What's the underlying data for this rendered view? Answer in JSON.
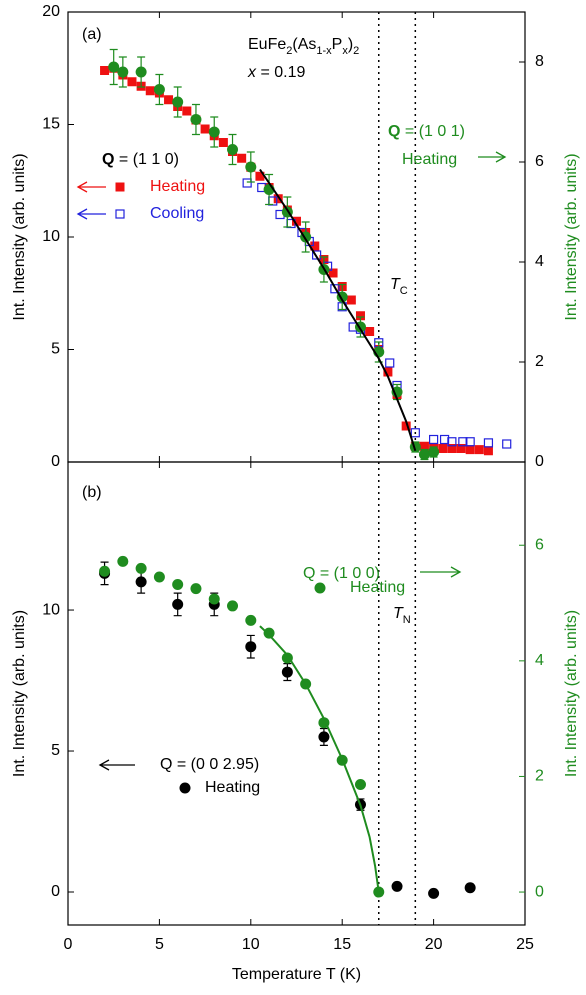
{
  "chart_data": [
    {
      "type": "scatter",
      "xlim": [
        0,
        25
      ],
      "xticks": [
        0,
        5,
        10,
        15,
        20,
        25
      ],
      "ylim": [
        0,
        20
      ],
      "yticks": [
        0,
        5,
        10,
        15,
        20
      ],
      "y2lim": [
        0,
        9
      ],
      "y2ticks": [
        0,
        2,
        4,
        6,
        8
      ],
      "ylabel": "Int. Intensity (arb. units)",
      "y2label": "Int. Intensity (arb. units)",
      "y2label_color": "#1f8c1f",
      "y2tick_color": "#000000",
      "vlines": [
        17,
        19
      ],
      "annotations": [
        {
          "parts": [
            {
              "text": "(a)"
            }
          ],
          "color": "#000000"
        },
        {
          "parts": [
            {
              "text": "EuFe"
            },
            {
              "text": "2",
              "style": "sub"
            },
            {
              "text": "(As"
            },
            {
              "text": "1-x",
              "style": "sub"
            },
            {
              "text": "P"
            },
            {
              "text": "x",
              "style": "sub"
            },
            {
              "text": ")"
            },
            {
              "text": "2",
              "style": "sub"
            }
          ],
          "color": "#000000"
        },
        {
          "parts": [
            {
              "text": "x",
              "style": "italic"
            },
            {
              "text": " = 0.19"
            }
          ],
          "color": "#000000"
        },
        {
          "parts": [
            {
              "text": "Q",
              "style": "bold"
            },
            {
              "text": " = (1 1 0)"
            }
          ],
          "color": "#000000"
        },
        {
          "parts": [
            {
              "text": "Q",
              "style": "bold"
            },
            {
              "text": " = (1 0 1)"
            }
          ],
          "color": "#1f8c1f"
        },
        {
          "parts": [
            {
              "text": "T",
              "style": "italic"
            },
            {
              "text": "C",
              "style": "sub"
            }
          ],
          "color": "#000000"
        }
      ],
      "series": [
        {
          "name": "Heating",
          "color": "#ee1111",
          "marker": "square",
          "axis": "y",
          "x": [
            2,
            2.5,
            3,
            3.5,
            4,
            4.5,
            5,
            5.5,
            6,
            6.5,
            7,
            7.5,
            8,
            8.5,
            9,
            9.5,
            10,
            10.5,
            11,
            11.5,
            12,
            12.5,
            13,
            13.5,
            14,
            14.5,
            15,
            15.5,
            16,
            16.5,
            17,
            17.5,
            18,
            18.5,
            19,
            19.5,
            20,
            20.5,
            21,
            21.5,
            22,
            22.5,
            23
          ],
          "values": [
            17.4,
            17.5,
            17.2,
            16.9,
            16.7,
            16.5,
            16.4,
            16.1,
            15.8,
            15.6,
            15.2,
            14.8,
            14.5,
            14.2,
            13.8,
            13.5,
            13.1,
            12.7,
            12.2,
            11.7,
            11.2,
            10.7,
            10.2,
            9.6,
            9.0,
            8.4,
            7.8,
            7.2,
            6.5,
            5.8,
            5.0,
            4.0,
            3.0,
            1.6,
            0.7,
            0.7,
            0.65,
            0.6,
            0.6,
            0.6,
            0.55,
            0.55,
            0.5
          ]
        },
        {
          "name": "Cooling",
          "color": "#2222dd",
          "marker": "open-square",
          "axis": "y",
          "x": [
            9.8,
            10.6,
            11.2,
            11.6,
            12.2,
            12.8,
            13.2,
            13.6,
            14.2,
            14.6,
            15,
            15.6,
            16,
            17,
            17.6,
            18,
            19,
            20,
            20.6,
            21,
            21.6,
            22,
            23,
            24
          ],
          "values": [
            12.4,
            12.2,
            11.6,
            11.0,
            10.6,
            10.2,
            9.8,
            9.2,
            8.7,
            7.7,
            6.9,
            6.0,
            5.9,
            5.3,
            4.4,
            3.4,
            1.3,
            1.0,
            1.0,
            0.9,
            0.9,
            0.9,
            0.85,
            0.8
          ]
        },
        {
          "name": "Heating",
          "color": "#1f8c1f",
          "marker": "circle",
          "axis": "y2",
          "x": [
            2.5,
            3,
            4,
            5,
            6,
            7,
            8,
            9,
            10,
            11,
            12,
            13,
            14,
            15,
            16,
            17,
            18,
            19,
            19.5,
            20
          ],
          "values": [
            7.9,
            7.8,
            7.8,
            7.45,
            7.2,
            6.85,
            6.6,
            6.25,
            5.9,
            5.45,
            5.0,
            4.5,
            3.85,
            3.3,
            2.7,
            2.2,
            1.4,
            0.3,
            0.15,
            0.2
          ],
          "errors": [
            0.35,
            0.3,
            0.3,
            0.3,
            0.3,
            0.3,
            0.3,
            0.3,
            0.3,
            0.3,
            0.3,
            0.3,
            0.25,
            0.25,
            0.2,
            0.2,
            0.15,
            0.1,
            0.1,
            0.1
          ]
        },
        {
          "color": "#000000",
          "marker": "line",
          "axis": "y",
          "x": [
            10.5,
            11,
            12,
            13,
            14,
            15,
            16,
            17,
            17.5,
            18,
            18.5,
            19
          ],
          "values": [
            13.0,
            12.4,
            11.2,
            9.9,
            8.6,
            7.2,
            5.9,
            4.6,
            3.8,
            2.8,
            1.8,
            0.5
          ]
        }
      ]
    },
    {
      "type": "scatter",
      "xlim": [
        0,
        25
      ],
      "xticks": [
        0,
        5,
        10,
        15,
        20,
        25
      ],
      "xlabel": "Temperature T (K)",
      "ylim": [
        -1.17,
        15.25
      ],
      "yticks": [
        0,
        5,
        10
      ],
      "y2lim": [
        -0.57,
        7.44
      ],
      "y2ticks": [
        0,
        2,
        4,
        6
      ],
      "ylabel": "Int. Intensity (arb. units)",
      "y2label": "Int. Intensity (arb. units)",
      "y2label_color": "#1f8c1f",
      "y2tick_color": "#1f8c1f",
      "vlines": [
        17,
        19
      ],
      "annotations": [
        {
          "parts": [
            {
              "text": "(b)"
            }
          ],
          "color": "#000000"
        },
        {
          "parts": [
            {
              "text": "Q = (1 0 0)"
            }
          ],
          "color": "#1f8c1f"
        },
        {
          "parts": [
            {
              "text": "T",
              "style": "italic"
            },
            {
              "text": "N",
              "style": "sub"
            }
          ],
          "color": "#000000"
        },
        {
          "parts": [
            {
              "text": "Q = (0 0 2.95)"
            }
          ],
          "color": "#000000"
        }
      ],
      "series": [
        {
          "name": "Heating",
          "color": "#000000",
          "marker": "circle",
          "axis": "y",
          "x": [
            2,
            4,
            6,
            8,
            10,
            12,
            14,
            16,
            18,
            20,
            22
          ],
          "values": [
            11.3,
            11.0,
            10.2,
            10.2,
            8.7,
            7.8,
            5.5,
            3.1,
            0.2,
            -0.05,
            0.15
          ],
          "errors": [
            0.4,
            0.4,
            0.4,
            0.4,
            0.4,
            0.3,
            0.3,
            0.2,
            null,
            null,
            null
          ]
        },
        {
          "name": "Heating",
          "color": "#1f8c1f",
          "marker": "circle",
          "axis": "y2",
          "x": [
            2,
            3,
            4,
            5,
            6,
            7,
            8,
            9,
            10,
            11,
            12,
            13,
            14,
            15,
            16,
            17
          ],
          "values": [
            5.55,
            5.72,
            5.6,
            5.45,
            5.32,
            5.25,
            5.07,
            4.95,
            4.7,
            4.48,
            4.05,
            3.6,
            2.93,
            2.28,
            1.86,
            0
          ]
        },
        {
          "color": "#1f8c1f",
          "marker": "line",
          "axis": "y2",
          "x": [
            10.5,
            11,
            12,
            13,
            14,
            15,
            16,
            16.5,
            16.8,
            17
          ],
          "values": [
            4.6,
            4.45,
            4.1,
            3.6,
            3.0,
            2.3,
            1.5,
            0.95,
            0.45,
            0
          ]
        }
      ]
    }
  ]
}
